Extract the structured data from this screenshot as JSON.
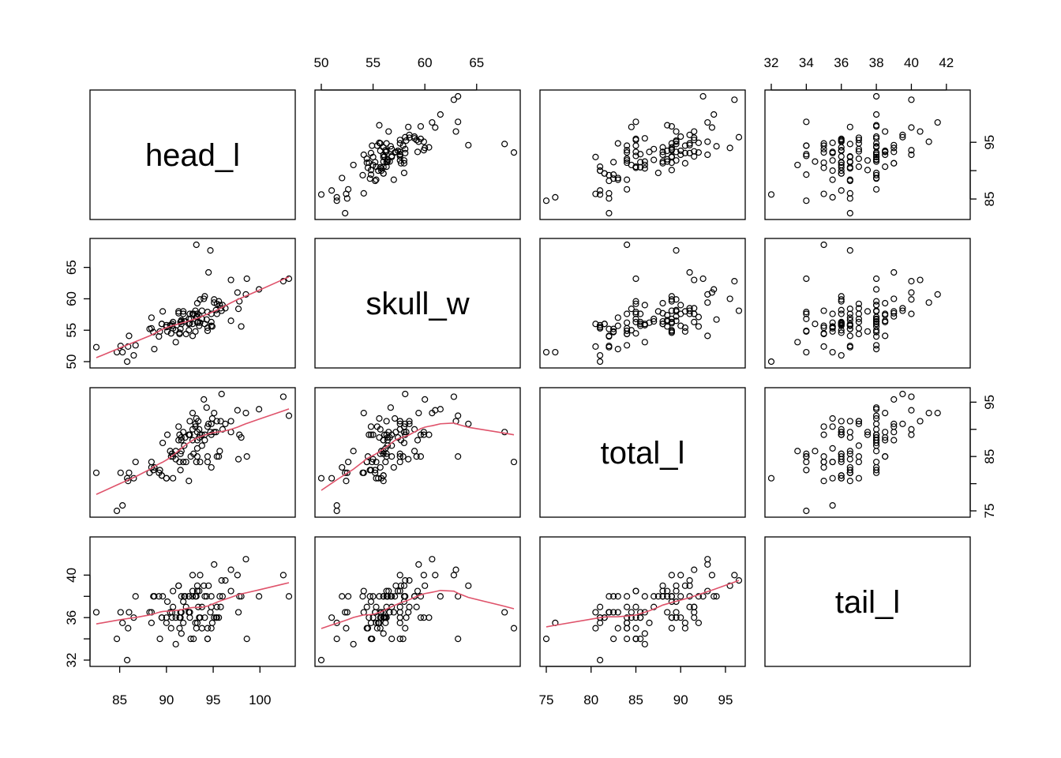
{
  "chart_data": {
    "type": "scatter",
    "layout": "pairs",
    "title": "",
    "variables": [
      "head_l",
      "skull_w",
      "total_l",
      "tail_l"
    ],
    "ranges": {
      "head_l": [
        82.5,
        103.1
      ],
      "skull_w": [
        50.0,
        68.6
      ],
      "total_l": [
        75.0,
        96.5
      ],
      "tail_l": [
        32.0,
        43.0
      ]
    },
    "axes": {
      "head_l": {
        "ticks": [
          85,
          90,
          95,
          100
        ]
      },
      "skull_w": {
        "ticks": [
          50,
          55,
          60,
          65
        ]
      },
      "total_l": {
        "ticks": [
          75,
          80,
          85,
          90,
          95
        ]
      },
      "tail_l": {
        "ticks": [
          32,
          34,
          36,
          38,
          40,
          42
        ]
      }
    },
    "tick_labels": {
      "top_skull_w": [
        "50",
        "55",
        "60",
        "65"
      ],
      "top_tail_l": [
        "32",
        "34",
        "36",
        "38",
        "40",
        "42"
      ],
      "right_head_l": [
        "85",
        "95"
      ],
      "right_total_l": [
        "75",
        "85",
        "95"
      ],
      "left_skull_w": [
        "50",
        "55",
        "60",
        "65"
      ],
      "left_tail_l": [
        "32",
        "36",
        "40"
      ],
      "bottom_head_l": [
        "85",
        "90",
        "95",
        "100"
      ],
      "bottom_total_l": [
        "75",
        "80",
        "85",
        "90",
        "95"
      ]
    },
    "smoother": {
      "lower_panels": true,
      "color": "#DF536B"
    },
    "point_color": "#000000",
    "grid": false,
    "observations": [
      [
        94.1,
        60.4,
        89.0,
        36.0
      ],
      [
        92.5,
        57.6,
        91.5,
        36.5
      ],
      [
        94.0,
        60.0,
        95.5,
        39.0
      ],
      [
        93.2,
        57.1,
        92.0,
        38.0
      ],
      [
        91.5,
        56.3,
        85.5,
        36.0
      ],
      [
        93.1,
        54.8,
        90.5,
        35.5
      ],
      [
        95.3,
        58.2,
        89.5,
        36.0
      ],
      [
        94.8,
        57.6,
        91.0,
        37.0
      ],
      [
        93.4,
        56.3,
        91.5,
        37.0
      ],
      [
        91.8,
        58.0,
        89.5,
        37.5
      ],
      [
        93.3,
        57.2,
        89.5,
        39.0
      ],
      [
        94.9,
        55.6,
        92.0,
        35.5
      ],
      [
        95.1,
        59.9,
        89.5,
        36.0
      ],
      [
        95.4,
        57.6,
        91.5,
        36.0
      ],
      [
        92.9,
        57.6,
        85.5,
        34.0
      ],
      [
        91.6,
        56.0,
        86.0,
        34.5
      ],
      [
        94.7,
        67.7,
        89.5,
        36.5
      ],
      [
        93.5,
        55.7,
        90.0,
        36.0
      ],
      [
        94.4,
        55.4,
        90.5,
        35.0
      ],
      [
        94.8,
        56.3,
        89.0,
        38.0
      ],
      [
        95.9,
        58.1,
        96.5,
        39.5
      ],
      [
        96.3,
        58.5,
        91.0,
        39.5
      ],
      [
        92.5,
        56.1,
        89.0,
        36.0
      ],
      [
        94.4,
        54.9,
        84.0,
        34.0
      ],
      [
        95.8,
        58.5,
        91.5,
        37.0
      ],
      [
        96.0,
        59.0,
        90.0,
        38.0
      ],
      [
        90.5,
        54.5,
        85.0,
        35.0
      ],
      [
        93.8,
        56.8,
        87.0,
        37.0
      ],
      [
        92.8,
        56.0,
        88.0,
        38.0
      ],
      [
        92.1,
        54.4,
        84.0,
        37.0
      ],
      [
        92.8,
        54.1,
        93.0,
        38.5
      ],
      [
        94.3,
        56.7,
        94.0,
        38.0
      ],
      [
        91.4,
        54.6,
        89.0,
        36.0
      ],
      [
        90.6,
        55.7,
        85.5,
        36.5
      ],
      [
        94.4,
        57.9,
        85.0,
        34.0
      ],
      [
        93.3,
        59.3,
        88.0,
        38.5
      ],
      [
        89.3,
        54.8,
        82.5,
        34.0
      ],
      [
        92.4,
        56.0,
        80.5,
        36.5
      ],
      [
        84.7,
        51.5,
        75.0,
        34.0
      ],
      [
        91.0,
        55.0,
        84.5,
        36.0
      ],
      [
        88.4,
        57.0,
        83.0,
        36.5
      ],
      [
        85.3,
        51.5,
        76.0,
        35.5
      ],
      [
        90.0,
        55.8,
        81.0,
        36.0
      ],
      [
        85.1,
        52.5,
        82.0,
        36.5
      ],
      [
        90.7,
        55.3,
        81.0,
        37.0
      ],
      [
        91.4,
        54.4,
        84.0,
        35.0
      ],
      [
        90.1,
        54.8,
        89.0,
        37.5
      ],
      [
        98.6,
        63.2,
        85.0,
        34.0
      ],
      [
        95.4,
        59.2,
        85.0,
        37.0
      ],
      [
        91.6,
        56.4,
        88.0,
        38.0
      ],
      [
        95.6,
        59.6,
        85.0,
        36.0
      ],
      [
        97.6,
        61.0,
        93.5,
        40.0
      ],
      [
        93.1,
        58.1,
        91.0,
        38.0
      ],
      [
        96.9,
        63.0,
        91.5,
        40.5
      ],
      [
        103.1,
        63.2,
        92.5,
        38.0
      ],
      [
        99.9,
        61.5,
        93.7,
        38.0
      ],
      [
        95.1,
        59.4,
        93.0,
        41.0
      ],
      [
        94.5,
        64.2,
        91.0,
        39.0
      ],
      [
        102.5,
        62.8,
        96.0,
        40.0
      ],
      [
        91.3,
        57.7,
        88.0,
        39.0
      ],
      [
        95.7,
        59.0,
        86.0,
        38.0
      ],
      [
        91.3,
        58.0,
        90.5,
        39.0
      ],
      [
        92.0,
        56.4,
        88.5,
        38.0
      ],
      [
        96.9,
        56.5,
        89.5,
        38.5
      ],
      [
        93.5,
        57.4,
        88.5,
        38.5
      ],
      [
        90.4,
        55.8,
        86.0,
        36.5
      ],
      [
        93.3,
        57.6,
        85.0,
        38.5
      ],
      [
        94.1,
        56.0,
        88.0,
        38.0
      ],
      [
        98.0,
        55.6,
        88.5,
        38.0
      ],
      [
        91.9,
        56.4,
        87.0,
        38.0
      ],
      [
        92.8,
        57.6,
        90.0,
        40.0
      ],
      [
        85.9,
        52.4,
        80.5,
        35.0
      ],
      [
        82.5,
        52.3,
        82.0,
        36.5
      ],
      [
        88.7,
        52.0,
        83.0,
        38.0
      ],
      [
        93.8,
        58.1,
        89.0,
        35.0
      ],
      [
        92.4,
        56.8,
        89.0,
        38.0
      ],
      [
        93.6,
        56.2,
        84.0,
        36.0
      ],
      [
        86.5,
        51.0,
        81.0,
        36.0
      ],
      [
        85.8,
        50.0,
        81.0,
        32.0
      ],
      [
        86.7,
        52.6,
        84.0,
        38.0
      ],
      [
        90.6,
        56.0,
        85.5,
        36.0
      ],
      [
        86.0,
        54.1,
        82.0,
        36.5
      ],
      [
        90.0,
        55.5,
        81.0,
        35.5
      ],
      [
        88.4,
        55.3,
        84.0,
        35.5
      ],
      [
        89.5,
        56.0,
        81.5,
        36.0
      ],
      [
        88.2,
        55.2,
        82.0,
        36.5
      ],
      [
        98.5,
        60.7,
        93.0,
        41.5
      ],
      [
        89.6,
        58.0,
        87.5,
        38.0
      ],
      [
        97.7,
        58.4,
        84.5,
        36.5
      ],
      [
        92.6,
        56.8,
        85.0,
        34.0
      ],
      [
        97.8,
        59.6,
        89.0,
        38.0
      ],
      [
        90.7,
        56.3,
        85.0,
        38.5
      ],
      [
        89.2,
        54.0,
        82.0,
        38.0
      ],
      [
        91.8,
        57.6,
        84.0,
        35.5
      ],
      [
        91.6,
        56.6,
        88.5,
        36.5
      ],
      [
        94.8,
        55.7,
        83.0,
        35.0
      ],
      [
        91.0,
        53.1,
        86.0,
        33.5
      ],
      [
        93.2,
        68.6,
        84.0,
        35.0
      ],
      [
        93.3,
        56.2,
        86.5,
        35.5
      ],
      [
        89.5,
        56.0,
        81.5,
        36.0
      ],
      [
        88.6,
        54.7,
        82.5,
        38.0
      ],
      [
        92.4,
        55.0,
        89.0,
        38.0
      ],
      [
        91.5,
        55.2,
        82.5,
        36.5
      ],
      [
        93.6,
        59.9,
        89.0,
        40.0
      ]
    ]
  }
}
